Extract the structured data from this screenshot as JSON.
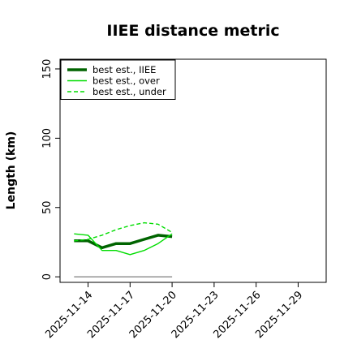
{
  "chart_data": {
    "type": "line",
    "title": "IIEE distance metric",
    "xlabel": "",
    "ylabel": "Length (km)",
    "xlim": [
      "2025-11-12",
      "2025-12-01"
    ],
    "ylim": [
      -4,
      157
    ],
    "x_tick_labels": [
      "2025-11-14",
      "2025-11-17",
      "2025-11-20",
      "2025-11-23",
      "2025-11-26",
      "2025-11-29"
    ],
    "y_ticks": [
      0,
      50,
      100,
      150
    ],
    "legend_position": "top-left",
    "grid": false,
    "series": [
      {
        "name": "best est., IIEE",
        "color": "#006400",
        "style": "solid",
        "width": "thick",
        "points": [
          {
            "x": "2025-11-13",
            "y": 26
          },
          {
            "x": "2025-11-14",
            "y": 26
          },
          {
            "x": "2025-11-15",
            "y": 21
          },
          {
            "x": "2025-11-16",
            "y": 24
          },
          {
            "x": "2025-11-17",
            "y": 24
          },
          {
            "x": "2025-11-18",
            "y": 27
          },
          {
            "x": "2025-11-19",
            "y": 30
          },
          {
            "x": "2025-11-20",
            "y": 29
          }
        ]
      },
      {
        "name": "best est., over",
        "color": "#00dd00",
        "style": "solid",
        "width": "thin",
        "points": [
          {
            "x": "2025-11-13",
            "y": 31
          },
          {
            "x": "2025-11-14",
            "y": 30
          },
          {
            "x": "2025-11-15",
            "y": 19
          },
          {
            "x": "2025-11-16",
            "y": 19
          },
          {
            "x": "2025-11-17",
            "y": 16
          },
          {
            "x": "2025-11-18",
            "y": 19
          },
          {
            "x": "2025-11-19",
            "y": 24
          },
          {
            "x": "2025-11-20",
            "y": 31
          }
        ]
      },
      {
        "name": "best est., under",
        "color": "#00dd00",
        "style": "dashed",
        "width": "thin",
        "points": [
          {
            "x": "2025-11-13",
            "y": 26
          },
          {
            "x": "2025-11-14",
            "y": 27
          },
          {
            "x": "2025-11-15",
            "y": 30
          },
          {
            "x": "2025-11-16",
            "y": 34
          },
          {
            "x": "2025-11-17",
            "y": 37
          },
          {
            "x": "2025-11-18",
            "y": 39
          },
          {
            "x": "2025-11-19",
            "y": 38
          },
          {
            "x": "2025-11-20",
            "y": 32
          }
        ]
      },
      {
        "color": "#888888",
        "style": "solid",
        "width": "thin",
        "points": [
          {
            "x": "2025-11-13",
            "y": 0
          },
          {
            "x": "2025-11-20",
            "y": 0
          }
        ]
      }
    ]
  }
}
